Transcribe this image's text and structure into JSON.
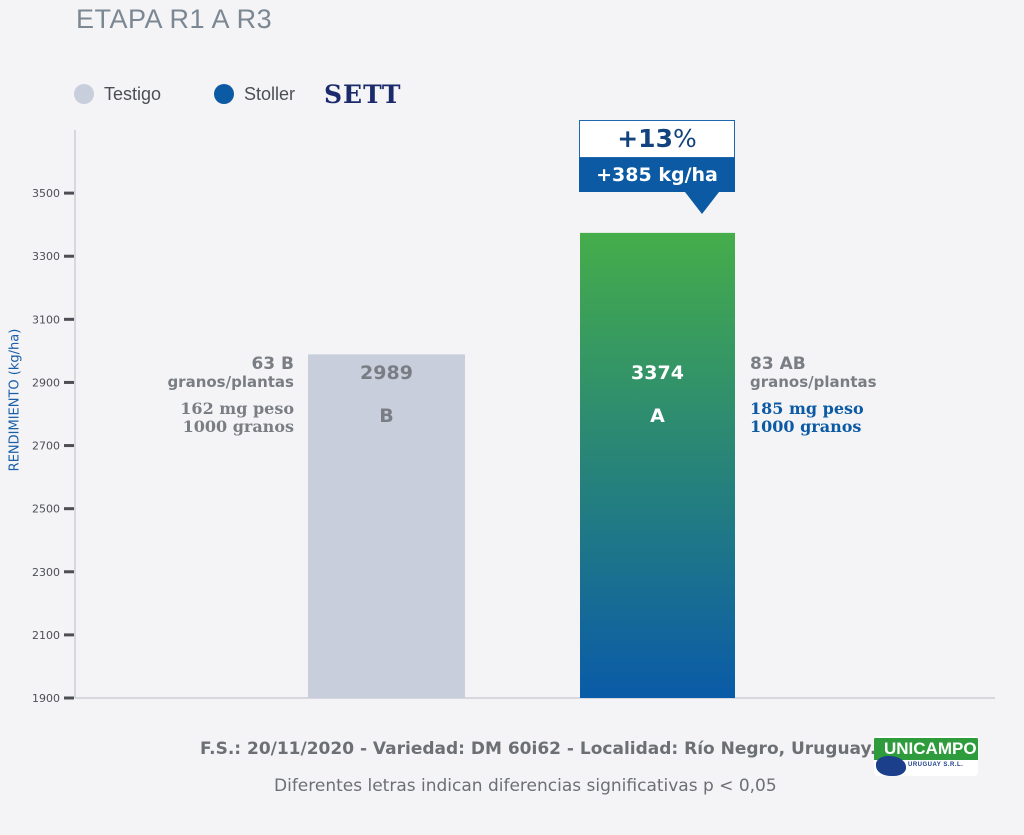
{
  "title": "ETAPA R1 A R3",
  "legend": [
    {
      "label": "Testigo",
      "color": "#c9cedd"
    },
    {
      "label": "Stoller",
      "color": "#0c5aa4"
    }
  ],
  "legend_brand": "SETT",
  "callout": {
    "percent_num": "+13",
    "percent_sign": "%",
    "kg": "+385 kg/ha"
  },
  "bars": [
    {
      "value_label": "2989",
      "letter": "B",
      "side_line1": "63 B",
      "side_line2": "granos/plantas",
      "side_line3": "162 mg peso",
      "side_line4": "1000 granos"
    },
    {
      "value_label": "3374",
      "letter": "A",
      "side_line1": "83 AB",
      "side_line2": "granos/plantas",
      "side_line3": "185 mg peso",
      "side_line4": "1000 granos"
    }
  ],
  "footer": {
    "info": "F.S.: 20/11/2020 - Variedad: DM 60i62 - Localidad: Río Negro, Uruguay.",
    "note": "Diferentes letras indican diferencias significativas p < 0,05"
  },
  "logo": {
    "name": "UNICAMPO",
    "sub": "URUGUAY S.R.L."
  },
  "colors": {
    "testigo": "#c9cedd",
    "stoller_top": "#45ad4a",
    "stoller_bottom": "#0a5ba8",
    "axis_label": "#1a5ea8",
    "peso_stoller": "#0c5aa4",
    "peso_testigo": "#7a7e84"
  },
  "chart_data": {
    "type": "bar",
    "categories": [
      "Testigo",
      "Stoller"
    ],
    "values": [
      2989,
      3374
    ],
    "ylabel": "RENDIMIENTO (kg/ha)",
    "ylim": [
      1900,
      3700
    ],
    "yticks": [
      1900,
      2100,
      2300,
      2500,
      2700,
      2900,
      3100,
      3300,
      3500
    ],
    "grid": false
  }
}
